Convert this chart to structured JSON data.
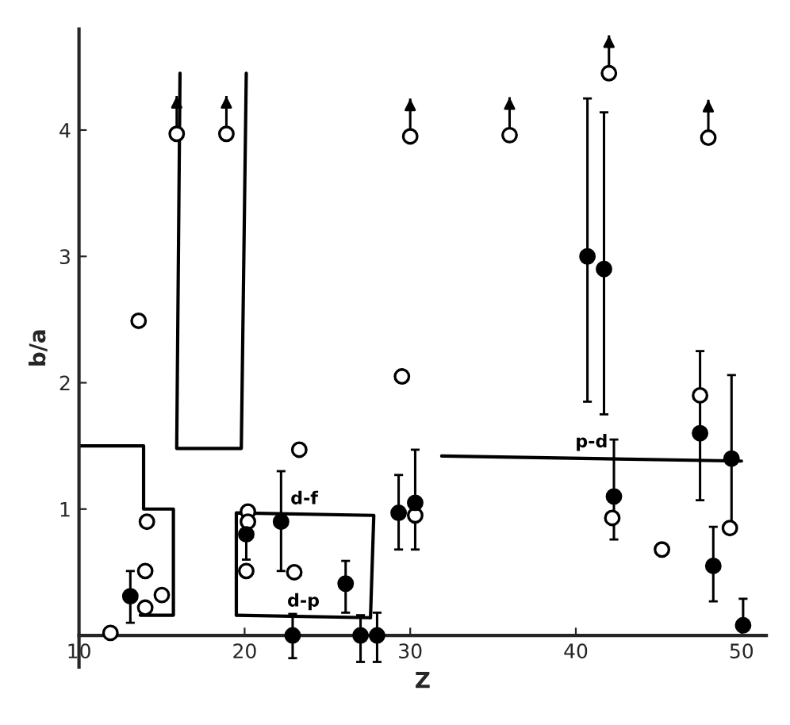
{
  "chart_data": {
    "type": "scatter",
    "xlabel": "Z",
    "ylabel": "b/a",
    "xlim": [
      10,
      51.5
    ],
    "ylim": [
      -0.25,
      4.8
    ],
    "xticks": [
      10,
      20,
      30,
      40,
      50
    ],
    "yticks": [
      1,
      2,
      3,
      4
    ],
    "grid": false,
    "legend": false,
    "marker": "circle",
    "series": [
      {
        "color": "#ffffff",
        "x": [
          11.9,
          13.6,
          15.9,
          18.9,
          30.0,
          36.0,
          42.0,
          48.0,
          14.1,
          14.0,
          15.0,
          14.0,
          20.2,
          20.2,
          20.1,
          23.3,
          23.0,
          29.5,
          30.3,
          42.2,
          45.2,
          47.5,
          49.3
        ],
        "values": [
          0.02,
          2.49,
          3.97,
          3.97,
          3.95,
          3.96,
          4.45,
          3.94,
          0.9,
          0.51,
          0.32,
          0.22,
          0.98,
          0.9,
          0.51,
          1.47,
          0.5,
          2.05,
          0.95,
          0.93,
          0.68,
          1.9,
          0.85
        ],
        "errors": [
          null,
          null,
          [
            3.97,
            4.27
          ],
          [
            3.97,
            4.27
          ],
          [
            3.95,
            4.25
          ],
          [
            3.96,
            4.26
          ],
          [
            4.45,
            4.75
          ],
          [
            3.94,
            4.24
          ],
          null,
          null,
          null,
          null,
          null,
          null,
          null,
          null,
          null,
          null,
          null,
          null,
          null,
          null,
          null
        ]
      },
      {
        "color": "#000000",
        "x": [
          13.1,
          20.1,
          22.2,
          26.1,
          22.9,
          27.0,
          28.0,
          29.3,
          30.3,
          40.7,
          41.7,
          42.3,
          47.5,
          49.4,
          48.3,
          50.1
        ],
        "values": [
          0.31,
          0.8,
          0.9,
          0.41,
          0.0,
          0.0,
          0.0,
          0.97,
          1.05,
          3.0,
          2.9,
          1.1,
          1.6,
          1.4,
          0.55,
          0.08
        ],
        "errors": [
          [
            0.1,
            0.51
          ],
          [
            0.6,
            0.97
          ],
          [
            0.51,
            1.3
          ],
          [
            0.18,
            0.59
          ],
          [
            -0.18,
            0.17
          ],
          [
            -0.21,
            0.16
          ],
          [
            -0.21,
            0.18
          ],
          [
            0.68,
            1.27
          ],
          [
            0.68,
            1.47
          ],
          [
            1.85,
            4.25
          ],
          [
            1.75,
            4.14
          ],
          [
            0.76,
            1.55
          ],
          [
            1.07,
            2.25
          ],
          [
            0.88,
            2.06
          ],
          [
            0.27,
            0.86
          ],
          [
            0.08,
            0.29
          ]
        ]
      },
      {
        "type": "line",
        "marker": "none",
        "color": "#000000",
        "x": [
          10,
          13.9,
          13.9,
          15.7,
          15.7,
          13.7
        ],
        "values": [
          1.5,
          1.5,
          1.0,
          1.0,
          0.16,
          0.16
        ]
      },
      {
        "type": "line",
        "marker": "none",
        "color": "#000000",
        "x": [
          16.1,
          15.9,
          19.8,
          20.1
        ],
        "values": [
          4.45,
          1.48,
          1.48,
          4.45
        ]
      },
      {
        "type": "line",
        "marker": "none",
        "name": "d-f",
        "color": "#000000",
        "x": [
          19.5,
          19.5,
          27.8,
          27.6
        ],
        "values": [
          0.16,
          0.97,
          0.95,
          0.14
        ]
      },
      {
        "type": "line",
        "marker": "none",
        "name": "d-p",
        "color": "#000000",
        "x": [
          19.5,
          27.6
        ],
        "values": [
          0.16,
          0.14
        ]
      },
      {
        "type": "line",
        "marker": "none",
        "name": "p-d",
        "color": "#000000",
        "x": [
          31.9,
          50.0
        ],
        "values": [
          1.42,
          1.38
        ]
      }
    ]
  }
}
